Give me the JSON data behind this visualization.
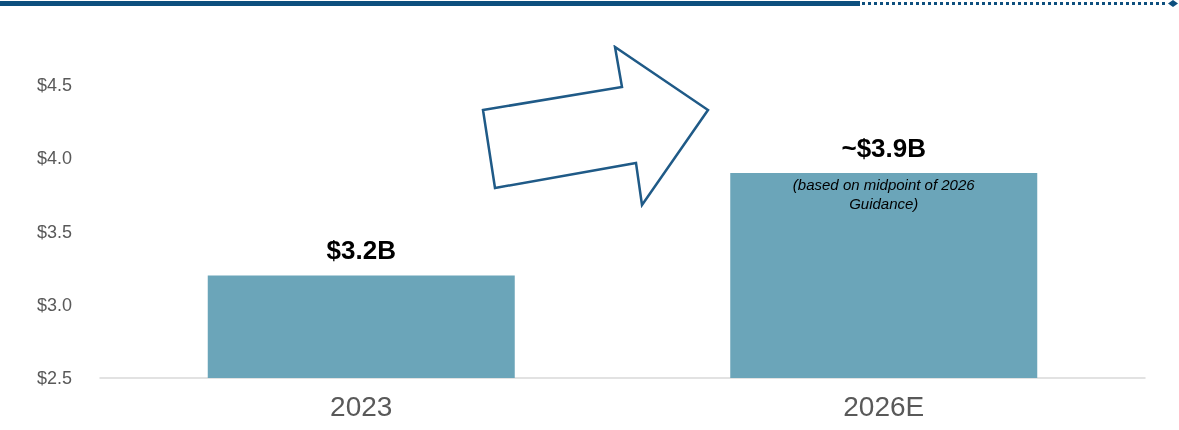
{
  "chart_data": {
    "type": "bar",
    "categories": [
      "2023",
      "2026E"
    ],
    "values": [
      3.2,
      3.9
    ],
    "color": "#6ba5b9",
    "value_labels": [
      "$3.2B",
      "~$3.9B"
    ],
    "annotations": [
      {
        "text": "(based on midpoint of 2026 Guidance)",
        "x": "2026E",
        "y": 3.9
      }
    ],
    "ylim": [
      2.5,
      4.5
    ],
    "yticks": [
      {
        "value": 2.5,
        "label": "$2.5"
      },
      {
        "value": 3.0,
        "label": "$3.0"
      },
      {
        "value": 3.5,
        "label": "$3.5"
      },
      {
        "value": 4.0,
        "label": "$4.0"
      },
      {
        "value": 4.5,
        "label": "$4.5"
      }
    ],
    "grid": false
  }
}
